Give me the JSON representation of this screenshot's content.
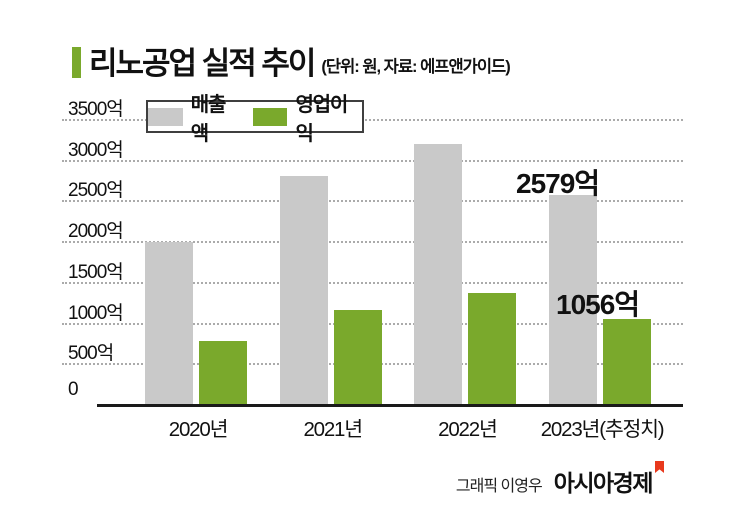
{
  "title": {
    "text": "리노공업 실적 추이",
    "subtitle": "(단위: 원, 자료: 에프앤가이드)"
  },
  "legend": {
    "items": [
      {
        "label": "매출액",
        "color": "#c9c9c9"
      },
      {
        "label": "영업이익",
        "color": "#7aa92c"
      }
    ]
  },
  "chart_data": {
    "type": "bar",
    "title": "리노공업 실적 추이",
    "unit_source_note": "(단위: 원, 자료: 에프앤가이드)",
    "categories": [
      "2020년",
      "2021년",
      "2022년",
      "2023년(추정치)"
    ],
    "series": [
      {
        "name": "매출액",
        "color": "#c9c9c9",
        "values": [
          2000,
          2810,
          3200,
          2579
        ]
      },
      {
        "name": "영업이익",
        "color": "#7aa92c",
        "values": [
          780,
          1170,
          1370,
          1056
        ]
      }
    ],
    "annotations": [
      {
        "text": "2579억",
        "series": "매출액",
        "category": "2023년(추정치)"
      },
      {
        "text": "1056억",
        "series": "영업이익",
        "category": "2023년(추정치)"
      }
    ],
    "xlabel": "",
    "ylabel": "",
    "ylim": [
      0,
      3500
    ],
    "ytick_step": 500,
    "yticks": [
      "3500억",
      "3000억",
      "2500억",
      "2000억",
      "1500억",
      "1000억",
      "500억",
      "0"
    ],
    "grid": "horizontal-dotted",
    "legend_position": "top-left"
  },
  "footer": {
    "credit": "그래픽 이영우",
    "brand": "아시아경제"
  },
  "colors": {
    "accent_green": "#7aa92c",
    "bar_gray": "#c9c9c9",
    "brand_mark_red": "#e8391d",
    "gridline": "#ababab",
    "axis": "#1a1a1a"
  }
}
